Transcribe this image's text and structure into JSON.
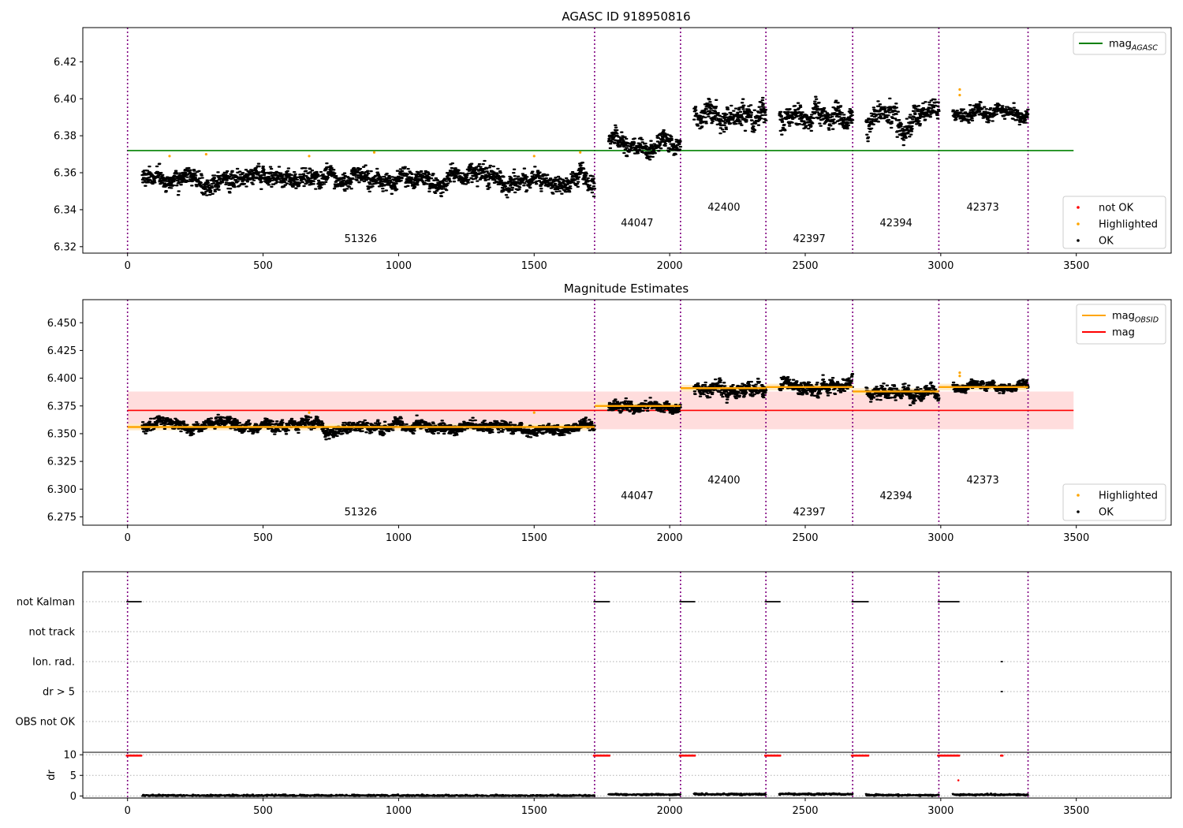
{
  "chart_data": [
    {
      "type": "scatter",
      "title": "AGASC ID 918950816",
      "xlabel": "",
      "ylabel": "",
      "xlim": [
        -165,
        3850
      ],
      "ylim": [
        6.3165,
        6.4385
      ],
      "xticks": [
        0,
        500,
        1000,
        1500,
        2000,
        2500,
        3000,
        3500
      ],
      "yticks": [
        "6.32",
        "6.34",
        "6.36",
        "6.38",
        "6.40",
        "6.42"
      ],
      "obs_boundaries": [
        0,
        1723,
        2040,
        2355,
        2675,
        2993,
        3322
      ],
      "obs_labels": [
        {
          "text": "51326",
          "x": 860,
          "y": 6.3225
        },
        {
          "text": "44047",
          "x": 1880,
          "y": 6.331
        },
        {
          "text": "42400",
          "x": 2200,
          "y": 6.3395
        },
        {
          "text": "42397",
          "x": 2515,
          "y": 6.3225
        },
        {
          "text": "42394",
          "x": 2835,
          "y": 6.331
        },
        {
          "text": "42373",
          "x": 3155,
          "y": 6.3395
        }
      ],
      "lines": [
        {
          "name": "mag_AGASC",
          "color": "#008000",
          "x": [
            0,
            3490
          ],
          "y": [
            6.372,
            6.372
          ]
        }
      ],
      "segment_levels": [
        {
          "x0": 55,
          "x1": 1723,
          "y": 6.3565,
          "noise": 0.004
        },
        {
          "x0": 1775,
          "x1": 2040,
          "y": 6.3755,
          "noise": 0.004
        },
        {
          "x0": 2090,
          "x1": 2355,
          "y": 6.391,
          "noise": 0.005
        },
        {
          "x0": 2405,
          "x1": 2675,
          "y": 6.392,
          "noise": 0.005
        },
        {
          "x0": 2725,
          "x1": 2993,
          "y": 6.388,
          "noise": 0.005
        },
        {
          "x0": 3045,
          "x1": 3322,
          "y": 6.392,
          "noise": 0.003
        }
      ],
      "highlighted_points": [
        {
          "x": 155,
          "y": 6.369
        },
        {
          "x": 290,
          "y": 6.37
        },
        {
          "x": 670,
          "y": 6.369
        },
        {
          "x": 910,
          "y": 6.371
        },
        {
          "x": 1500,
          "y": 6.369
        },
        {
          "x": 1670,
          "y": 6.371
        },
        {
          "x": 3070,
          "y": 6.405
        },
        {
          "x": 3070,
          "y": 6.402
        }
      ],
      "legend_lines": [
        {
          "label": "mag",
          "sub": "AGASC",
          "color": "#008000"
        }
      ],
      "legend_points": [
        {
          "label": "not OK",
          "color": "#ff0000"
        },
        {
          "label": "Highlighted",
          "color": "#ffa500"
        },
        {
          "label": "OK",
          "color": "#000000"
        }
      ]
    },
    {
      "type": "scatter",
      "title": "Magnitude Estimates",
      "xlabel": "",
      "ylabel": "",
      "xlim": [
        -165,
        3850
      ],
      "ylim": [
        6.2675,
        6.4708
      ],
      "xticks": [
        0,
        500,
        1000,
        1500,
        2000,
        2500,
        3000,
        3500
      ],
      "yticks": [
        "6.275",
        "6.300",
        "6.325",
        "6.350",
        "6.375",
        "6.400",
        "6.425",
        "6.450"
      ],
      "obs_boundaries": [
        0,
        1723,
        2040,
        2355,
        2675,
        2993,
        3322
      ],
      "obs_labels": [
        {
          "text": "51326",
          "x": 860,
          "y": 6.2765
        },
        {
          "text": "44047",
          "x": 1880,
          "y": 6.291
        },
        {
          "text": "42400",
          "x": 2200,
          "y": 6.305
        },
        {
          "text": "42397",
          "x": 2515,
          "y": 6.2765
        },
        {
          "text": "42394",
          "x": 2835,
          "y": 6.291
        },
        {
          "text": "42373",
          "x": 3155,
          "y": 6.305
        }
      ],
      "band": {
        "x0": 0,
        "x1": 3490,
        "y0": 6.354,
        "y1": 6.388,
        "color": "#ffd7d7"
      },
      "obsid_band": {
        "color": "#ffe9c2",
        "half_width": 0.003
      },
      "lines": [
        {
          "name": "mag",
          "color": "#ff0000",
          "x": [
            0,
            3490
          ],
          "y": [
            6.371,
            6.371
          ]
        }
      ],
      "obsid_mags": [
        {
          "x0": 0,
          "x1": 1723,
          "y": 6.356
        },
        {
          "x0": 1723,
          "x1": 2040,
          "y": 6.375
        },
        {
          "x0": 2040,
          "x1": 2355,
          "y": 6.391
        },
        {
          "x0": 2355,
          "x1": 2675,
          "y": 6.392
        },
        {
          "x0": 2675,
          "x1": 2993,
          "y": 6.388
        },
        {
          "x0": 2993,
          "x1": 3322,
          "y": 6.392
        }
      ],
      "segment_levels": [
        {
          "x0": 55,
          "x1": 1723,
          "y": 6.3565,
          "noise": 0.004
        },
        {
          "x0": 1775,
          "x1": 2040,
          "y": 6.3755,
          "noise": 0.004
        },
        {
          "x0": 2090,
          "x1": 2355,
          "y": 6.391,
          "noise": 0.005
        },
        {
          "x0": 2405,
          "x1": 2675,
          "y": 6.392,
          "noise": 0.005
        },
        {
          "x0": 2725,
          "x1": 2993,
          "y": 6.388,
          "noise": 0.005
        },
        {
          "x0": 3045,
          "x1": 3322,
          "y": 6.392,
          "noise": 0.003
        }
      ],
      "highlighted_points": [
        {
          "x": 670,
          "y": 6.369
        },
        {
          "x": 1500,
          "y": 6.369
        },
        {
          "x": 3070,
          "y": 6.405
        },
        {
          "x": 3070,
          "y": 6.402
        }
      ],
      "legend_lines": [
        {
          "label": "mag",
          "sub": "OBSID",
          "color": "#ffa500"
        },
        {
          "label": "mag",
          "sub": "",
          "color": "#ff0000"
        }
      ],
      "legend_points": [
        {
          "label": "Highlighted",
          "color": "#ffa500"
        },
        {
          "label": "OK",
          "color": "#000000"
        }
      ]
    },
    {
      "type": "scatter",
      "title": "",
      "xlabel": "",
      "ylabel": "",
      "xlim": [
        -165,
        3850
      ],
      "flag_rows": [
        "not Kalman",
        "not track",
        "Ion. rad.",
        "dr > 5",
        "OBS not OK"
      ],
      "obs_boundaries": [
        0,
        1723,
        2040,
        2355,
        2675,
        2993,
        3322
      ],
      "flag_points": [
        {
          "row": "not Kalman",
          "x0": 0,
          "x1": 48
        },
        {
          "row": "not Kalman",
          "x0": 1723,
          "x1": 1775
        },
        {
          "row": "not Kalman",
          "x0": 2040,
          "x1": 2090
        },
        {
          "row": "not Kalman",
          "x0": 2355,
          "x1": 2405
        },
        {
          "row": "not Kalman",
          "x0": 2675,
          "x1": 2730
        },
        {
          "row": "not Kalman",
          "x0": 2993,
          "x1": 3065
        },
        {
          "row": "Ion. rad.",
          "x0": 3225,
          "x1": 3225
        },
        {
          "row": "dr > 5",
          "x0": 3225,
          "x1": 3225
        }
      ]
    },
    {
      "type": "scatter",
      "title": "",
      "xlabel": "",
      "ylabel": "dr",
      "xlim": [
        -165,
        3850
      ],
      "ylim": [
        -0.5,
        10.6
      ],
      "xticks": [
        0,
        500,
        1000,
        1500,
        2000,
        2500,
        3000,
        3500
      ],
      "yticks": [
        "0",
        "5",
        "10"
      ],
      "obs_boundaries": [
        0,
        1723,
        2040,
        2355,
        2675,
        2993,
        3322
      ],
      "capped_points": [
        {
          "x0": 0,
          "x1": 48,
          "y": 9.8
        },
        {
          "x0": 1723,
          "x1": 1775,
          "y": 9.8
        },
        {
          "x0": 2040,
          "x1": 2090,
          "y": 9.8
        },
        {
          "x0": 2355,
          "x1": 2405,
          "y": 9.8
        },
        {
          "x0": 2675,
          "x1": 2730,
          "y": 9.8
        },
        {
          "x0": 2993,
          "x1": 3065,
          "y": 9.8
        },
        {
          "x0": 3225,
          "x1": 3225,
          "y": 9.8
        }
      ],
      "extra_points": [
        {
          "x": 3065,
          "y": 3.8,
          "color": "#ff0000"
        }
      ],
      "segment_levels": [
        {
          "x0": 55,
          "x1": 1723,
          "y": 0.1
        },
        {
          "x0": 1775,
          "x1": 2040,
          "y": 0.35
        },
        {
          "x0": 2090,
          "x1": 2355,
          "y": 0.4
        },
        {
          "x0": 2405,
          "x1": 2675,
          "y": 0.45
        },
        {
          "x0": 2725,
          "x1": 2993,
          "y": 0.2
        },
        {
          "x0": 3045,
          "x1": 3322,
          "y": 0.3
        }
      ]
    }
  ]
}
